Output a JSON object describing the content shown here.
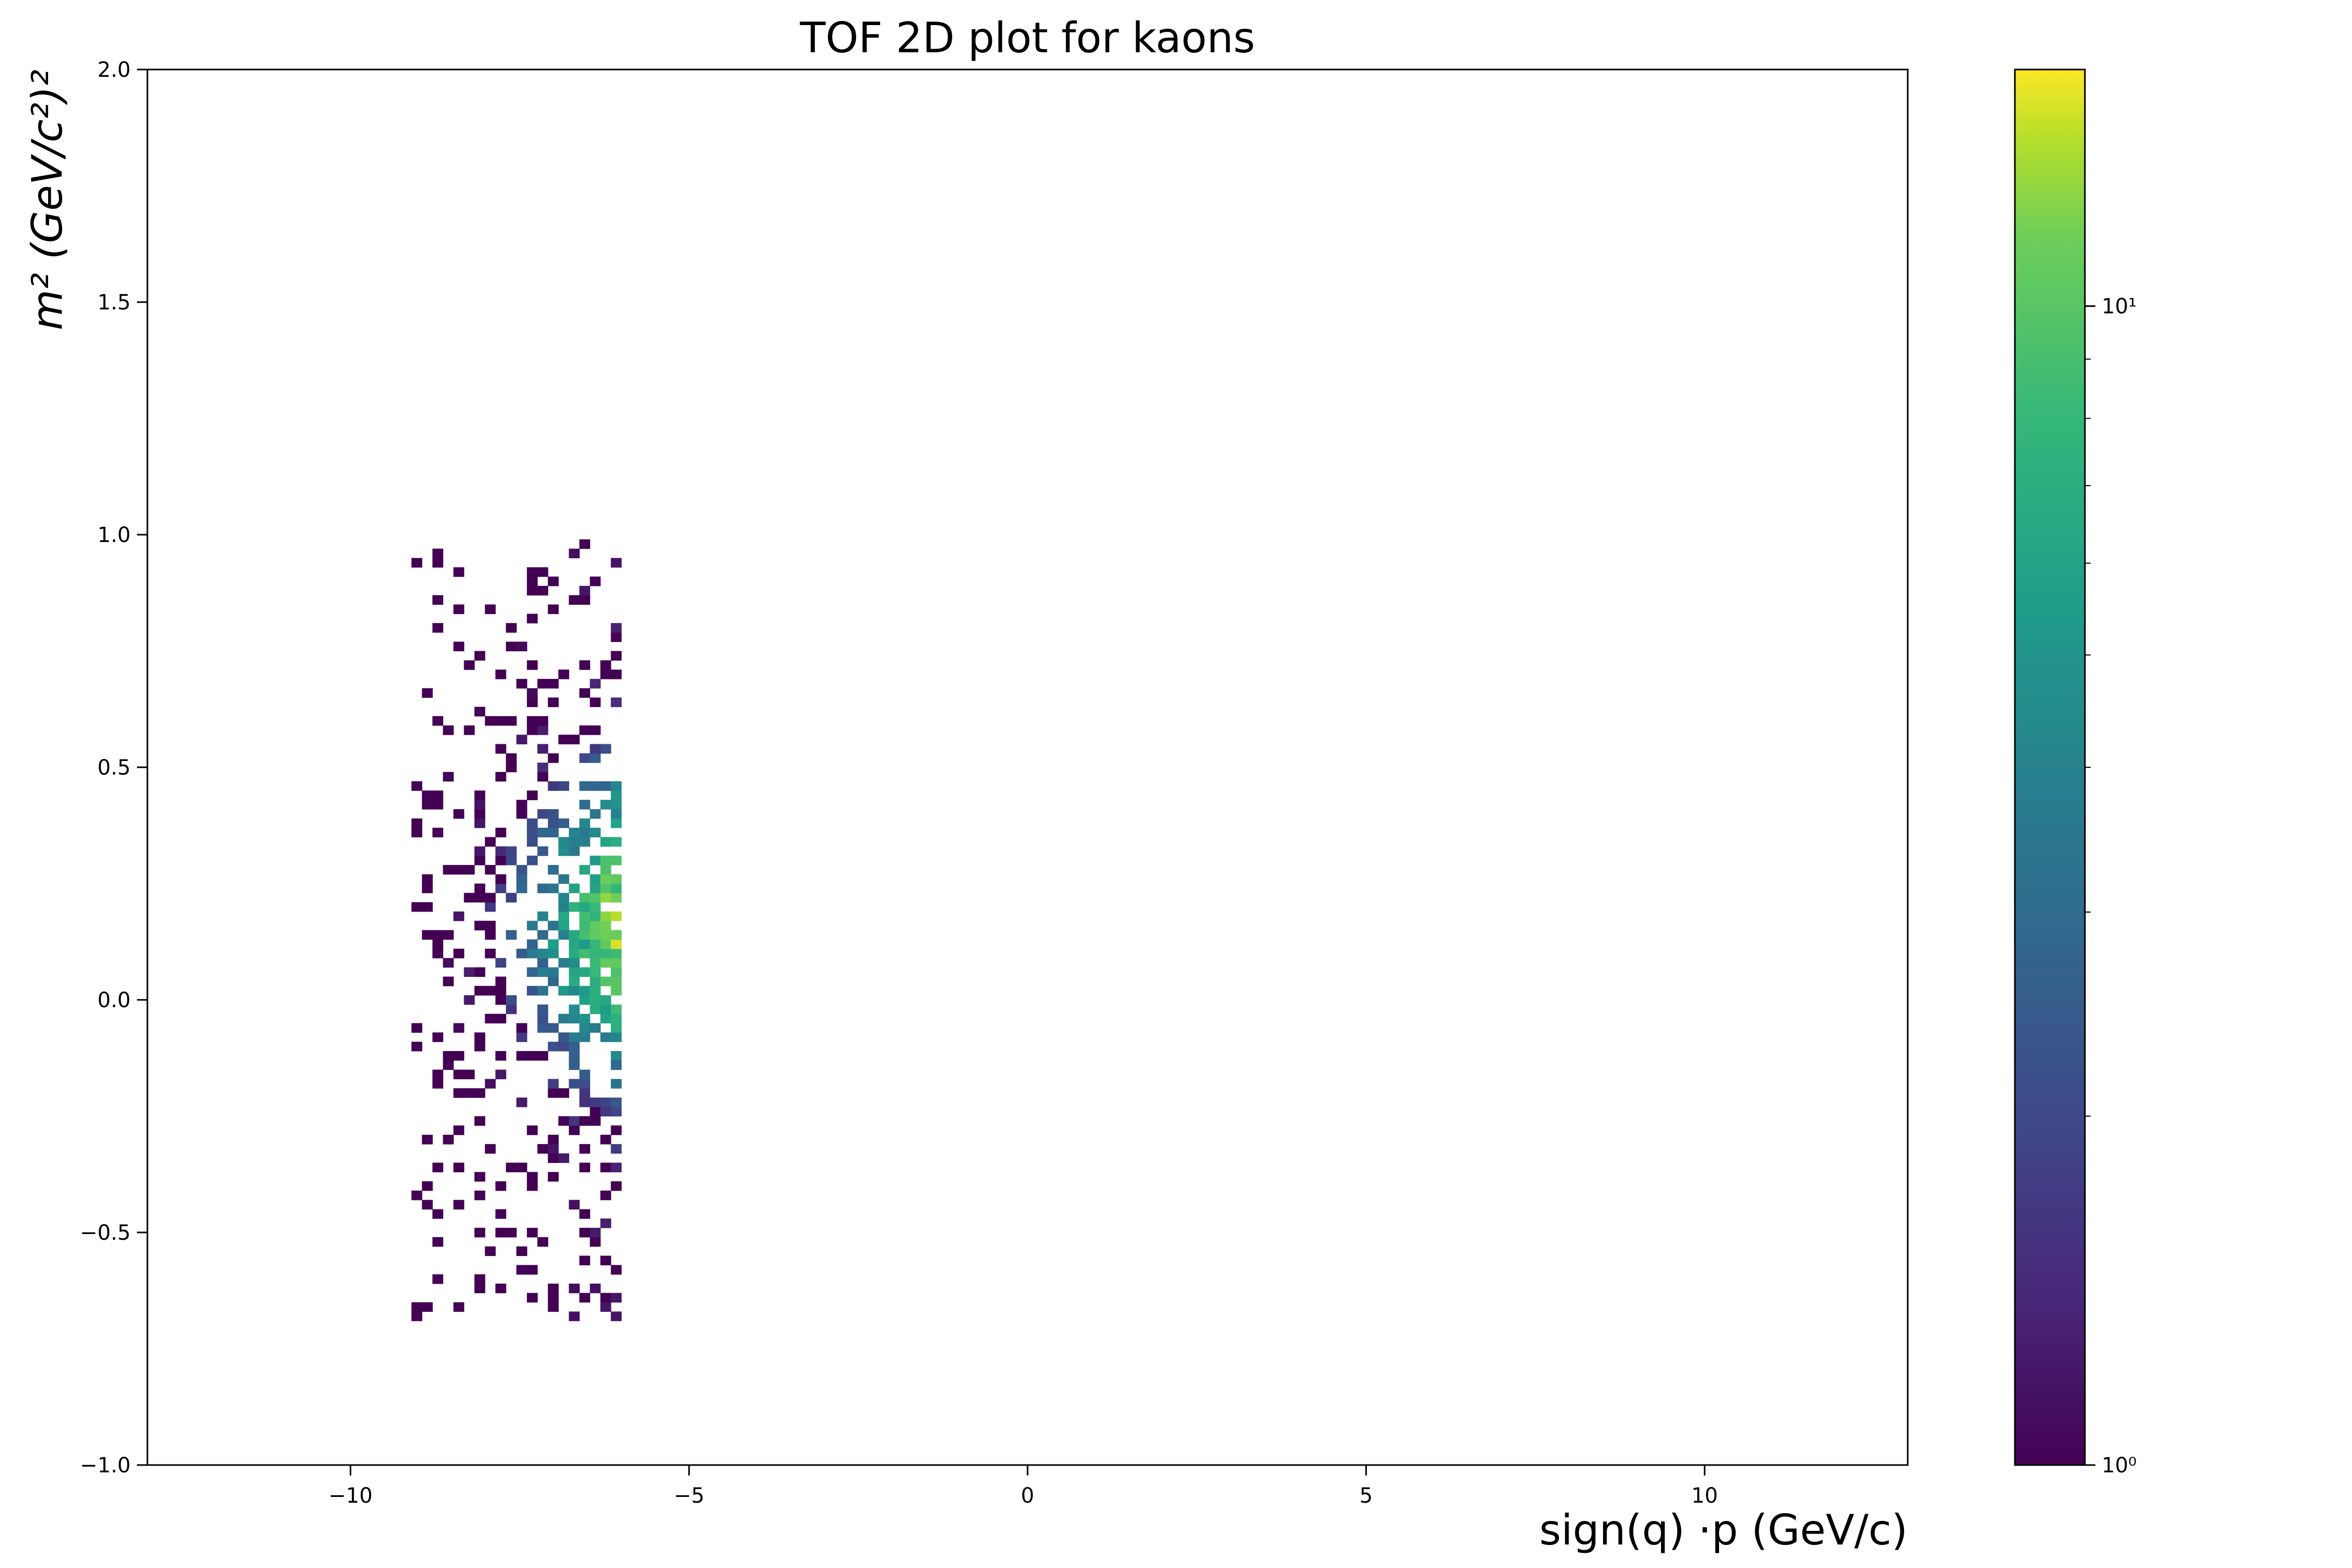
{
  "chart_data": {
    "type": "heatmap",
    "title": "TOF 2D plot for kaons",
    "xlabel": "sign(q) ·p (GeV/c)",
    "ylabel": "m² (GeV/c²)²",
    "xlim": [
      -13,
      13
    ],
    "ylim": [
      -1.0,
      2.0
    ],
    "x_ticks": [
      -10,
      -5,
      0,
      5,
      10
    ],
    "x_tick_labels": [
      "−10",
      "−5",
      "0",
      "5",
      "10"
    ],
    "y_ticks": [
      -1.0,
      -0.5,
      0.0,
      0.5,
      1.0,
      1.5,
      2.0
    ],
    "y_tick_labels": [
      "−1.0",
      "−0.5",
      "0.0",
      "0.5",
      "1.0",
      "1.5",
      "2.0"
    ],
    "colorbar": {
      "scale": "log",
      "colormap": "viridis",
      "range": [
        1,
        16
      ],
      "tick_labels": [
        "10⁰",
        "10¹"
      ],
      "tick_values": [
        1,
        10
      ]
    },
    "occupied_region": {
      "x_range": [
        -9.1,
        -6.0
      ],
      "y_range": [
        -0.69,
        0.99
      ],
      "peak_location": {
        "x": -6.3,
        "y": 0.15
      },
      "peak_count": 16,
      "bin_size": {
        "x": 0.155,
        "y": 0.02
      }
    },
    "grid": false,
    "legend": "colorbar-right"
  }
}
